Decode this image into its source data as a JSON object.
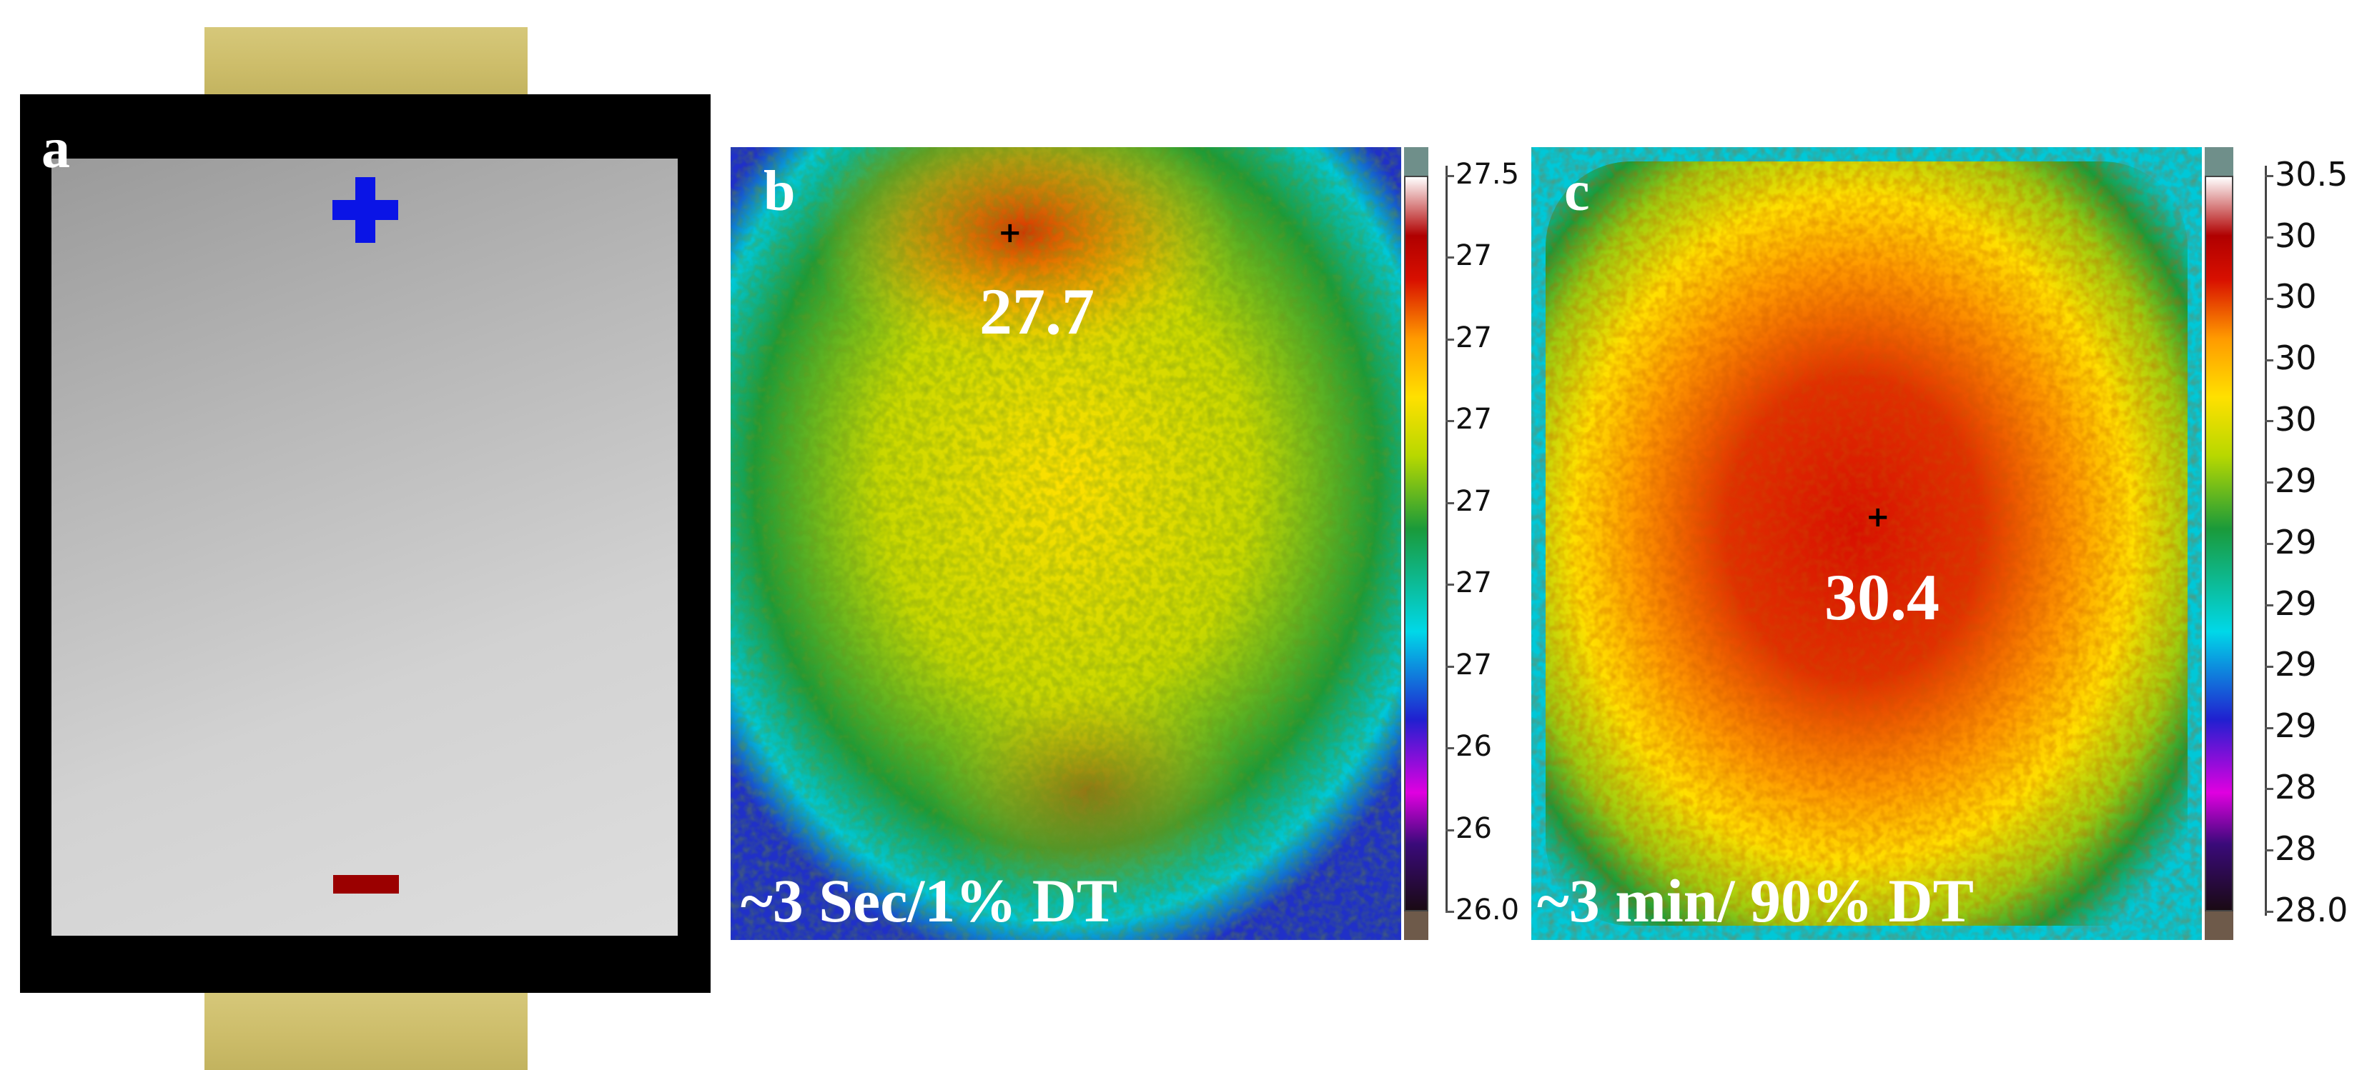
{
  "panel_a": {
    "letter": "a",
    "plus_symbol": "plus-icon",
    "minus_symbol": "minus-icon",
    "colors": {
      "plus": "#0a14e6",
      "minus": "#9b0000",
      "tab": "#cdbd6a",
      "frame": "#000000"
    }
  },
  "panel_b": {
    "letter": "b",
    "peak_label": "27.7",
    "caption": "~3 Sec/1% DT",
    "scale_ticks": [
      "27.5",
      "27",
      "27",
      "27",
      "27",
      "27",
      "27",
      "26",
      "26",
      "26.0"
    ]
  },
  "panel_c": {
    "letter": "c",
    "peak_label": "30.4",
    "caption": "~3 min/ 90% DT",
    "scale_ticks": [
      "30.5",
      "30",
      "30",
      "30",
      "30",
      "29",
      "29",
      "29",
      "29",
      "29",
      "28",
      "28",
      "28.0"
    ]
  },
  "colormap": [
    "#1a0a14",
    "#3a0a7a",
    "#e000e0",
    "#2020d0",
    "#00d8e8",
    "#1a9a3a",
    "#b8d800",
    "#ffe000",
    "#ff9a00",
    "#d81000",
    "#b00000",
    "#ffffff"
  ]
}
